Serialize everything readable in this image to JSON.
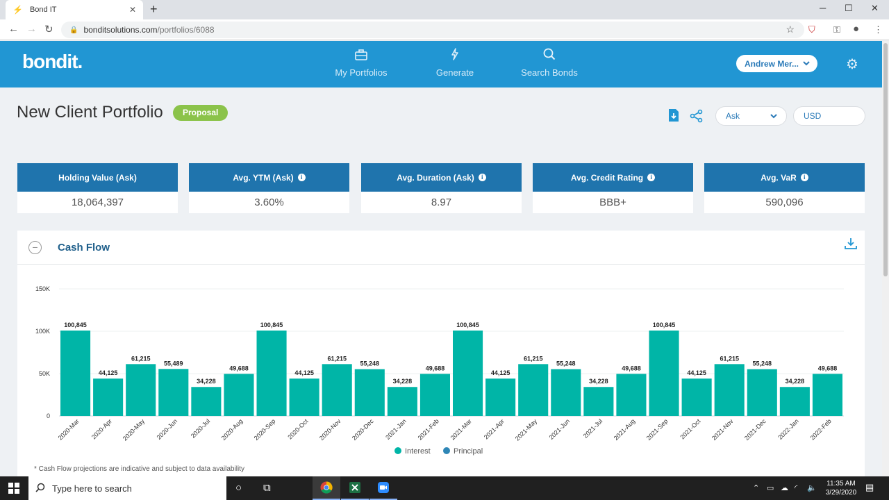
{
  "browser": {
    "tab_title": "Bond IT",
    "url_domain": "bonditsolutions.com",
    "url_path": "/portfolios/6088"
  },
  "app": {
    "logo": "bondit.",
    "nav": [
      {
        "label": "My Portfolios",
        "icon": "briefcase-icon"
      },
      {
        "label": "Generate",
        "icon": "lightning-icon"
      },
      {
        "label": "Search Bonds",
        "icon": "search-icon"
      }
    ],
    "user_name": "Andrew Mer..."
  },
  "page": {
    "title": "New Client Portfolio",
    "status_badge": "Proposal",
    "price_select": "Ask",
    "currency_select": "USD"
  },
  "kpis": [
    {
      "label": "Holding Value (Ask)",
      "value": "18,064,397",
      "info": false
    },
    {
      "label": "Avg. YTM (Ask)",
      "value": "3.60%",
      "info": true
    },
    {
      "label": "Avg. Duration (Ask)",
      "value": "8.97",
      "info": true
    },
    {
      "label": "Avg. Credit Rating",
      "value": "BBB+",
      "info": true
    },
    {
      "label": "Avg. VaR",
      "value": "590,096",
      "info": true
    }
  ],
  "cashflow": {
    "title": "Cash Flow",
    "footnote": "* Cash Flow projections are indicative and subject to data availability"
  },
  "chart_data": {
    "type": "bar",
    "title": "",
    "xlabel": "",
    "ylabel": "",
    "ylim": [
      0,
      150000
    ],
    "yticks": [
      {
        "value": 0,
        "label": "0"
      },
      {
        "value": 50000,
        "label": "50K"
      },
      {
        "value": 100000,
        "label": "100K"
      },
      {
        "value": 150000,
        "label": "150K"
      }
    ],
    "categories": [
      "2020-Mar",
      "2020-Apr",
      "2020-May",
      "2020-Jun",
      "2020-Jul",
      "2020-Aug",
      "2020-Sep",
      "2020-Oct",
      "2020-Nov",
      "2020-Dec",
      "2021-Jan",
      "2021-Feb",
      "2021-Mar",
      "2021-Apr",
      "2021-May",
      "2021-Jun",
      "2021-Jul",
      "2021-Aug",
      "2021-Sep",
      "2021-Oct",
      "2021-Nov",
      "2021-Dec",
      "2022-Jan",
      "2022-Feb"
    ],
    "series": [
      {
        "name": "Interest",
        "color": "#00b5a7",
        "values": [
          100845,
          44125,
          61215,
          55489,
          34228,
          49688,
          100845,
          44125,
          61215,
          55248,
          34228,
          49688,
          100845,
          44125,
          61215,
          55248,
          34228,
          49688,
          100845,
          44125,
          61215,
          55248,
          34228,
          49688
        ]
      },
      {
        "name": "Principal",
        "color": "#2e86b6",
        "values": [
          0,
          0,
          0,
          0,
          0,
          0,
          0,
          0,
          0,
          0,
          0,
          0,
          0,
          0,
          0,
          0,
          0,
          0,
          0,
          0,
          0,
          0,
          0,
          0
        ]
      }
    ],
    "data_labels": [
      "100,845",
      "44,125",
      "61,215",
      "55,489",
      "34,228",
      "49,688",
      "100,845",
      "44,125",
      "61,215",
      "55,248",
      "34,228",
      "49,688",
      "100,845",
      "44,125",
      "61,215",
      "55,248",
      "34,228",
      "49,688",
      "100,845",
      "44,125",
      "61,215",
      "55,248",
      "34,228",
      "49,688"
    ],
    "legend_position": "bottom-center",
    "grid": true
  },
  "taskbar": {
    "search_placeholder": "Type here to search",
    "time": "11:35 AM",
    "date": "3/29/2020"
  }
}
